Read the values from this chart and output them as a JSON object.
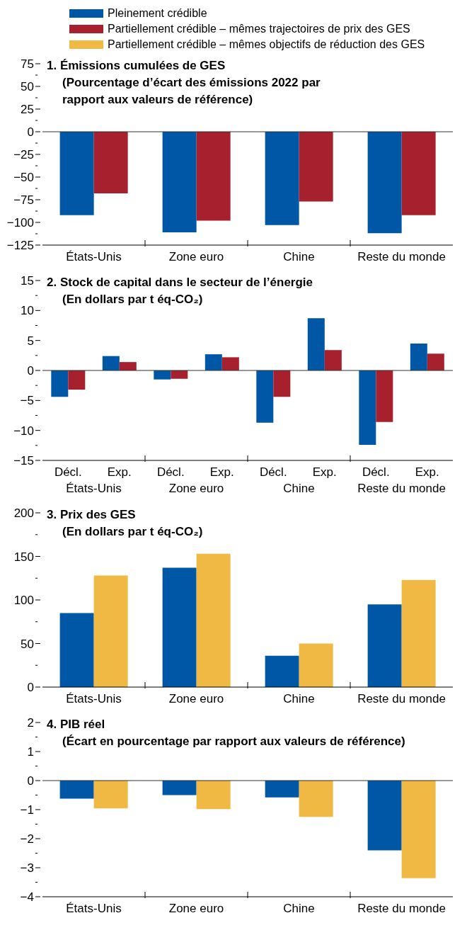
{
  "chart_data": [
    {
      "type": "bar",
      "title": "1. Émissions cumulées de GES",
      "subtitle": "(Pourcentage d’écart des émissions 2022 par rapport aux valeurs de référence)",
      "categories": [
        "États-Unis",
        "Zone euro",
        "Chine",
        "Reste du monde"
      ],
      "series": [
        {
          "name": "Pleinement crédible",
          "color": "#0057a6",
          "values": [
            -92,
            -111,
            -103,
            -112
          ]
        },
        {
          "name": "Partiellement crédible – mêmes trajectoires de prix des GES",
          "color": "#a6202e",
          "values": [
            -68,
            -98,
            -77,
            -92
          ]
        }
      ],
      "ylim": [
        -125,
        75
      ],
      "yticks": [
        -125,
        {
          "value": -112.5,
          "label": null
        },
        -100,
        {
          "value": -87.5,
          "label": null
        },
        -75,
        {
          "value": -62.5,
          "label": null
        },
        -50,
        {
          "value": -37.5,
          "label": null
        },
        -25,
        {
          "value": -12.5,
          "label": null
        },
        0,
        {
          "value": 12.5,
          "label": null
        },
        25,
        {
          "value": 37.5,
          "label": null
        },
        50,
        {
          "value": 62.5,
          "label": null
        },
        75
      ],
      "ref_lines": [
        {
          "axis": "y",
          "value": 0
        }
      ],
      "legend": "top",
      "grid": false
    },
    {
      "type": "bar",
      "title": "2. Stock de capital dans le secteur de l’énergie",
      "subtitle": "(En dollars par t éq-CO₂)",
      "categories": [
        "Décl.",
        "Exp.",
        "Décl.",
        "Exp.",
        "Décl.",
        "Exp.",
        "Décl.",
        "Exp."
      ],
      "annotations": [
        "États-Unis",
        "Zone euro",
        "Chine",
        "Reste du monde"
      ],
      "series": [
        {
          "color": "#0057a6",
          "values": [
            -4.4,
            2.4,
            -1.5,
            2.7,
            -8.7,
            8.7,
            -12.4,
            4.5
          ]
        },
        {
          "color": "#a6202e",
          "values": [
            -3.2,
            1.4,
            -1.4,
            2.2,
            -4.4,
            3.4,
            -8.6,
            2.8
          ]
        }
      ],
      "ylim": [
        -15,
        15
      ],
      "yticks": [
        -15,
        {
          "value": -12.5,
          "label": null
        },
        -10,
        {
          "value": -7.5,
          "label": null
        },
        -5,
        {
          "value": -2.5,
          "label": null
        },
        0,
        {
          "value": 2.5,
          "label": null
        },
        5,
        {
          "value": 7.5,
          "label": null
        },
        10,
        {
          "value": 12.5,
          "label": null
        },
        15
      ],
      "ref_lines": [
        {
          "axis": "y",
          "value": 0
        }
      ],
      "grid": false
    },
    {
      "type": "bar",
      "title": "3. Prix des GES",
      "subtitle": "(En dollars par t éq-CO₂)",
      "categories": [
        "États-Unis",
        "Zone euro",
        "Chine",
        "Reste du monde"
      ],
      "series": [
        {
          "color": "#0057a6",
          "values": [
            85,
            137,
            36,
            95
          ]
        },
        {
          "name": "Partiellement crédible – mêmes objectifs de réduction des GES",
          "color": "#f0b944",
          "values": [
            128,
            153,
            50,
            123
          ]
        }
      ],
      "ylim": [
        0,
        200
      ],
      "yticks": [
        0,
        {
          "value": 25,
          "label": null
        },
        50,
        {
          "value": 75,
          "label": null
        },
        100,
        {
          "value": 125,
          "label": null
        },
        150,
        {
          "value": 175,
          "label": null
        },
        200
      ],
      "grid": false
    },
    {
      "type": "bar",
      "title": "4. PIB réel",
      "subtitle": "(Écart en pourcentage par rapport aux valeurs de référence)",
      "categories": [
        "États-Unis",
        "Zone euro",
        "Chine",
        "Reste du monde"
      ],
      "series": [
        {
          "color": "#0057a6",
          "values": [
            -0.62,
            -0.5,
            -0.58,
            -2.4
          ]
        },
        {
          "color": "#f0b944",
          "values": [
            -0.96,
            -0.98,
            -1.25,
            -3.36
          ]
        }
      ],
      "ylim": [
        -4,
        2
      ],
      "yticks": [
        -4,
        {
          "value": -3.5,
          "label": null
        },
        -3,
        {
          "value": -2.5,
          "label": null
        },
        -2,
        {
          "value": -1.5,
          "label": null
        },
        -1,
        {
          "value": -0.5,
          "label": null
        },
        0,
        {
          "value": 0.5,
          "label": null
        },
        1,
        {
          "value": 1.5,
          "label": null
        },
        2
      ],
      "ref_lines": [
        {
          "axis": "y",
          "value": 0
        }
      ],
      "grid": false
    }
  ]
}
